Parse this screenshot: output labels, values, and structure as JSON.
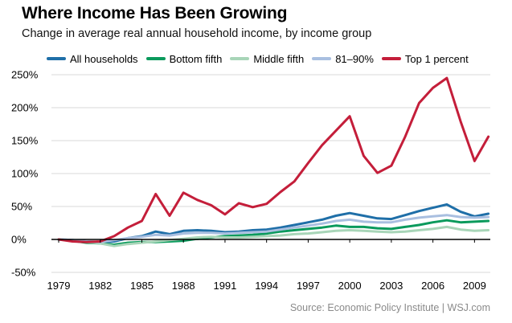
{
  "chart_data": {
    "type": "line",
    "title": "Where Income Has Been Growing",
    "subtitle": "Change in average real annual household income, by income group",
    "source": "Source: Economic Policy Institute  |  WSJ.com",
    "xlabel": "",
    "ylabel": "",
    "xlim": [
      1979,
      2010
    ],
    "ylim": [
      -50,
      250
    ],
    "grid": true,
    "legend_position": "top",
    "y_ticks": [
      250,
      200,
      150,
      100,
      50,
      0,
      -50
    ],
    "y_tick_labels": [
      "250%",
      "200%",
      "150%",
      "100%",
      "50%",
      "0%",
      "-50%"
    ],
    "x_ticks": [
      1979,
      1982,
      1985,
      1988,
      1991,
      1994,
      1997,
      2000,
      2003,
      2006,
      2009
    ],
    "x_tick_labels": [
      "1979",
      "1982",
      "1985",
      "1988",
      "1991",
      "1994",
      "1997",
      "2000",
      "2003",
      "2006",
      "2009"
    ],
    "x": [
      1979,
      1980,
      1981,
      1982,
      1983,
      1984,
      1985,
      1986,
      1987,
      1988,
      1989,
      1990,
      1991,
      1992,
      1993,
      1994,
      1995,
      1996,
      1997,
      1998,
      1999,
      2000,
      2001,
      2002,
      2003,
      2004,
      2005,
      2006,
      2007,
      2008,
      2009,
      2010
    ],
    "series": [
      {
        "name": "All households",
        "color": "#1f6fa8",
        "values": [
          0,
          -1,
          -3,
          -4,
          -3,
          2,
          5,
          12,
          8,
          13,
          14,
          13,
          11,
          12,
          14,
          15,
          18,
          22,
          26,
          30,
          36,
          40,
          36,
          32,
          31,
          37,
          43,
          48,
          53,
          42,
          35,
          39
        ]
      },
      {
        "name": "Bottom fifth",
        "color": "#0a9a5c",
        "values": [
          0,
          -2,
          -5,
          -6,
          -8,
          -5,
          -4,
          -4,
          -3,
          -2,
          1,
          3,
          5,
          6,
          7,
          9,
          12,
          14,
          16,
          18,
          21,
          19,
          19,
          17,
          16,
          19,
          22,
          26,
          29,
          26,
          27,
          28
        ]
      },
      {
        "name": "Middle fifth",
        "color": "#a8d5b8",
        "values": [
          0,
          -2,
          -4,
          -6,
          -10,
          -7,
          -5,
          -3,
          -1,
          1,
          3,
          4,
          3,
          3,
          4,
          5,
          6,
          8,
          9,
          11,
          13,
          14,
          13,
          12,
          11,
          12,
          14,
          16,
          19,
          15,
          13,
          14
        ]
      },
      {
        "name": "81–90%",
        "color": "#a9bfe0",
        "values": [
          0,
          -1,
          -3,
          -4,
          -1,
          2,
          4,
          7,
          6,
          9,
          10,
          10,
          9,
          10,
          11,
          12,
          15,
          18,
          21,
          24,
          28,
          30,
          27,
          26,
          26,
          30,
          33,
          35,
          37,
          34,
          33,
          34
        ]
      },
      {
        "name": "Top 1 percent",
        "color": "#c41e3a",
        "values": [
          0,
          -3,
          -4,
          -3,
          5,
          18,
          28,
          69,
          36,
          71,
          60,
          52,
          38,
          55,
          49,
          54,
          72,
          88,
          116,
          143,
          165,
          187,
          127,
          101,
          112,
          156,
          207,
          230,
          245,
          179,
          119,
          156
        ]
      }
    ]
  }
}
